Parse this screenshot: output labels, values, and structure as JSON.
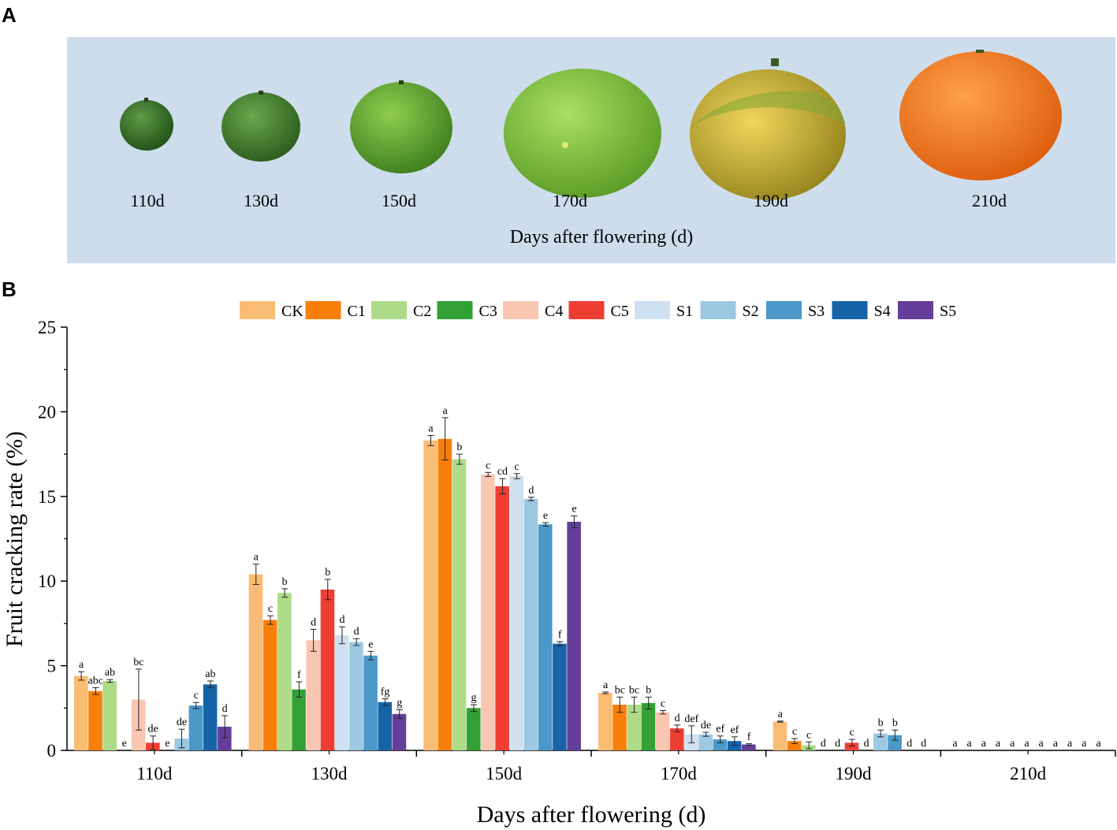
{
  "panel_a": {
    "label": "A",
    "title": "Days after flowering (d)",
    "fruits": [
      {
        "day": "110d",
        "color": "#3f7a2a",
        "stage": "dark-green"
      },
      {
        "day": "130d",
        "color": "#4b8a31",
        "stage": "dark-green"
      },
      {
        "day": "150d",
        "color": "#63a82d",
        "stage": "green"
      },
      {
        "day": "170d",
        "color": "#7cbf33",
        "stage": "light-green"
      },
      {
        "day": "190d",
        "color": "#c9b22f",
        "stage": "yellow"
      },
      {
        "day": "210d",
        "color": "#f07a1e",
        "stage": "orange"
      }
    ]
  },
  "chart_data": {
    "panel_label": "B",
    "type": "bar",
    "ylabel": "Fruit cracking rate (%)",
    "xlabel": "Days after flowering (d)",
    "ylim": [
      0,
      25
    ],
    "yticks": [
      "0",
      "5",
      "10",
      "15",
      "20",
      "25"
    ],
    "categories": [
      "110d",
      "130d",
      "150d",
      "170d",
      "190d",
      "210d"
    ],
    "series": [
      {
        "name": "CK",
        "color": "#f9bc74",
        "values": [
          4.4,
          10.4,
          18.3,
          3.4,
          1.7,
          0
        ],
        "errors": [
          0.25,
          0.6,
          0.3,
          0.05,
          0.03,
          0
        ],
        "letters": [
          "a",
          "a",
          "a",
          "a",
          "a",
          "a"
        ]
      },
      {
        "name": "C1",
        "color": "#f77f0a",
        "values": [
          3.5,
          7.7,
          18.4,
          2.7,
          0.55,
          0
        ],
        "errors": [
          0.2,
          0.25,
          1.25,
          0.45,
          0.15,
          0
        ],
        "letters": [
          "abc",
          "c",
          "a",
          "bc",
          "c",
          "a"
        ]
      },
      {
        "name": "C2",
        "color": "#aedb88",
        "values": [
          4.1,
          9.3,
          17.2,
          2.7,
          0.3,
          0
        ],
        "errors": [
          0.08,
          0.25,
          0.3,
          0.45,
          0.2,
          0
        ],
        "letters": [
          "ab",
          "b",
          "b",
          "bc",
          "c",
          "a"
        ]
      },
      {
        "name": "C3",
        "color": "#33a036",
        "values": [
          0,
          3.6,
          2.5,
          2.8,
          0,
          0
        ],
        "errors": [
          0,
          0.45,
          0.2,
          0.35,
          0,
          0
        ],
        "letters": [
          "e",
          "f",
          "g",
          "b",
          "d",
          "a"
        ]
      },
      {
        "name": "C4",
        "color": "#f9c6b2",
        "values": [
          3.0,
          6.5,
          16.3,
          2.25,
          0,
          0
        ],
        "errors": [
          1.8,
          0.65,
          0.12,
          0.1,
          0,
          0
        ],
        "letters": [
          "bc",
          "d",
          "c",
          "c",
          "d",
          "a"
        ]
      },
      {
        "name": "C5",
        "color": "#ee3e34",
        "values": [
          0.45,
          9.5,
          15.6,
          1.3,
          0.45,
          0
        ],
        "errors": [
          0.4,
          0.6,
          0.45,
          0.2,
          0.2,
          0
        ],
        "letters": [
          "de",
          "b",
          "cd",
          "d",
          "c",
          "a"
        ]
      },
      {
        "name": "S1",
        "color": "#cfe0f0",
        "values": [
          0,
          6.8,
          16.2,
          0.95,
          0,
          0
        ],
        "errors": [
          0,
          0.5,
          0.15,
          0.5,
          0,
          0
        ],
        "letters": [
          "e",
          "d",
          "c",
          "def",
          "d",
          "a"
        ]
      },
      {
        "name": "S2",
        "color": "#9cc8e2",
        "values": [
          0.7,
          6.4,
          14.85,
          0.95,
          1.0,
          0
        ],
        "errors": [
          0.55,
          0.2,
          0.1,
          0.12,
          0.2,
          0
        ],
        "letters": [
          "de",
          "d",
          "d",
          "de",
          "b",
          "a"
        ]
      },
      {
        "name": "S3",
        "color": "#4b98c9",
        "values": [
          2.65,
          5.6,
          13.35,
          0.65,
          0.9,
          0
        ],
        "errors": [
          0.18,
          0.25,
          0.1,
          0.2,
          0.3,
          0
        ],
        "letters": [
          "c",
          "e",
          "e",
          "ef",
          "b",
          "a"
        ]
      },
      {
        "name": "S4",
        "color": "#1763a8",
        "values": [
          3.9,
          2.85,
          6.3,
          0.55,
          0,
          0
        ],
        "errors": [
          0.2,
          0.2,
          0.12,
          0.25,
          0,
          0
        ],
        "letters": [
          "ab",
          "fg",
          "f",
          "ef",
          "d",
          "a"
        ]
      },
      {
        "name": "S5",
        "color": "#643e9a",
        "values": [
          1.4,
          2.15,
          13.5,
          0.35,
          0,
          0
        ],
        "errors": [
          0.65,
          0.25,
          0.35,
          0.05,
          0,
          0
        ],
        "letters": [
          "d",
          "g",
          "e",
          "f",
          "d",
          "a"
        ]
      }
    ]
  }
}
